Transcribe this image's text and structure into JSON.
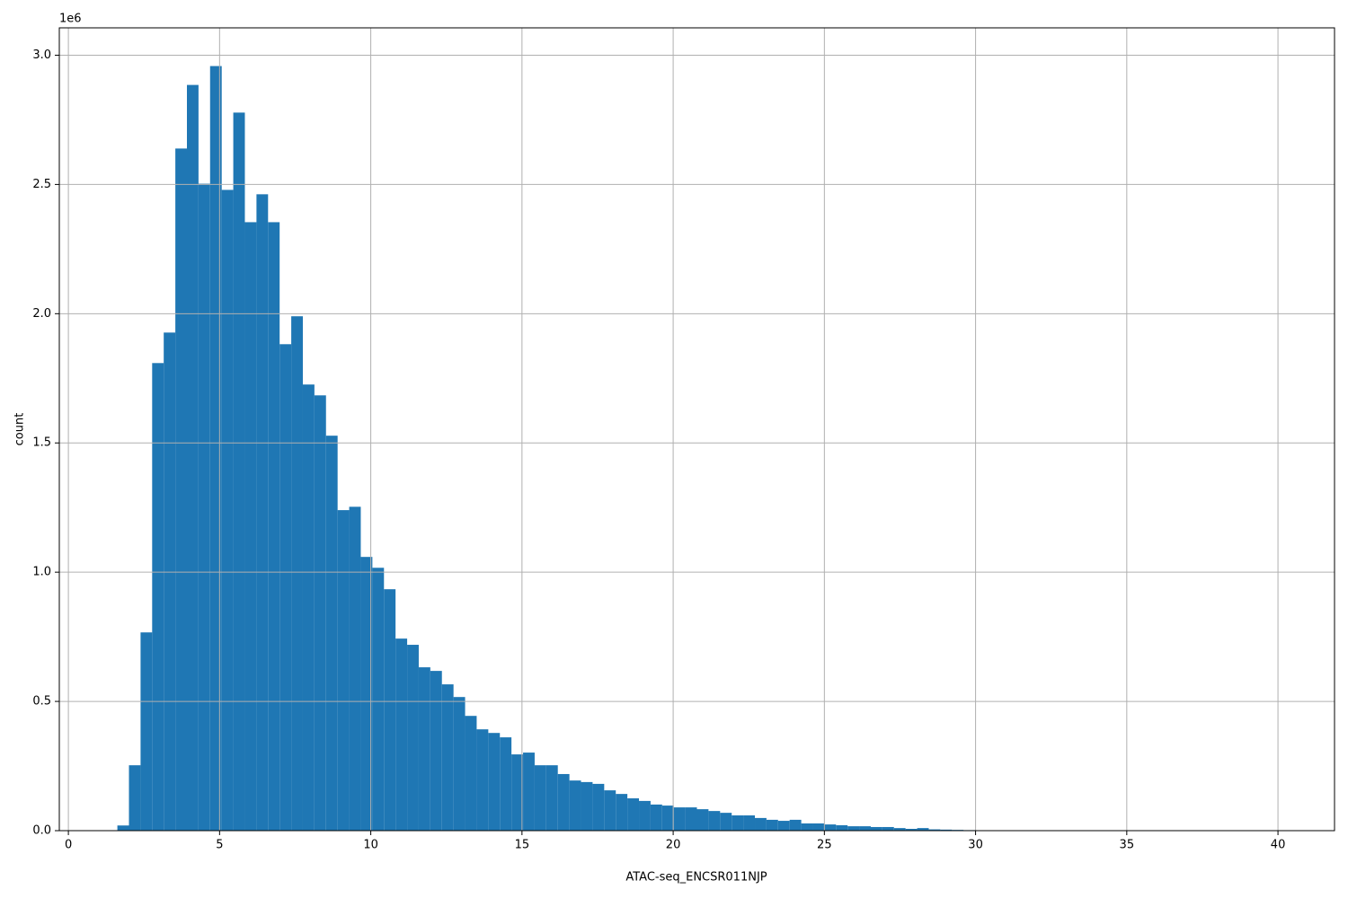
{
  "chart_data": {
    "type": "histogram",
    "x_label": "ATAC-seq_ENCSR011NJP",
    "y_label": "count",
    "y_offset_label": "1e6",
    "color": "#1f77b4",
    "grid": true,
    "bins": [
      1.62,
      2.003,
      2.387,
      2.77,
      3.153,
      3.537,
      3.92,
      4.303,
      4.686,
      5.07,
      5.453,
      5.836,
      6.22,
      6.603,
      6.986,
      7.37,
      7.753,
      8.136,
      8.519,
      8.903,
      9.286,
      9.669,
      10.053,
      10.436,
      10.819,
      11.203,
      11.586,
      11.969,
      12.352,
      12.736,
      13.119,
      13.502,
      13.886,
      14.269,
      14.652,
      15.036,
      15.419,
      15.802,
      16.185,
      16.569,
      16.952,
      17.335,
      17.719,
      18.102,
      18.485,
      18.869,
      19.252,
      19.635,
      20.018,
      20.402,
      20.785,
      21.168,
      21.552,
      21.935,
      22.318,
      22.702,
      23.085,
      23.468,
      23.851,
      24.235,
      24.618,
      25.001,
      25.385,
      25.768,
      26.151,
      26.535,
      26.918,
      27.301,
      27.684,
      28.068,
      28.451,
      28.834,
      29.218,
      29.601,
      29.984,
      30.368,
      30.751,
      31.134,
      31.517,
      31.901,
      32.284,
      32.667,
      33.051,
      33.434,
      33.817,
      34.201,
      34.584,
      34.967,
      35.35,
      35.734,
      36.117,
      36.5,
      36.884,
      37.267,
      37.65,
      38.034,
      38.417,
      38.8,
      39.183,
      39.567,
      39.95
    ],
    "counts": [
      20000,
      253000,
      767000,
      1809000,
      1927000,
      2639000,
      2885000,
      2503000,
      2958000,
      2479000,
      2778000,
      2354000,
      2462000,
      2354000,
      1882000,
      1990000,
      1726000,
      1684000,
      1528000,
      1240000,
      1253000,
      1059000,
      1017000,
      934000,
      743000,
      719000,
      632000,
      618000,
      566000,
      517000,
      444000,
      392000,
      378000,
      361000,
      295000,
      302000,
      253000,
      253000,
      219000,
      194000,
      188000,
      181000,
      156000,
      142000,
      125000,
      115000,
      101000,
      97000,
      90000,
      90000,
      83000,
      76000,
      69000,
      59000,
      59000,
      49000,
      42000,
      38000,
      42000,
      28000,
      28000,
      24000,
      21000,
      17000,
      17000,
      14000,
      14000,
      10000,
      7000,
      10000,
      5000,
      4000,
      3000,
      2000,
      1000,
      1000,
      500,
      400,
      300,
      200,
      200,
      100,
      100,
      100,
      50,
      50,
      50,
      50,
      20,
      20,
      20,
      20,
      10,
      10,
      10,
      10,
      10,
      10,
      10,
      10
    ],
    "xlim": [
      -0.3,
      41.87
    ],
    "ylim": [
      0,
      3105900
    ],
    "xticks": [
      0,
      5,
      10,
      15,
      20,
      25,
      30,
      35,
      40
    ],
    "yticks": [
      {
        "value": 0,
        "label": "0.0"
      },
      {
        "value": 500000,
        "label": "0.5"
      },
      {
        "value": 1000000,
        "label": "1.0"
      },
      {
        "value": 1500000,
        "label": "1.5"
      },
      {
        "value": 2000000,
        "label": "2.0"
      },
      {
        "value": 2500000,
        "label": "2.5"
      },
      {
        "value": 3000000,
        "label": "3.0"
      }
    ]
  }
}
